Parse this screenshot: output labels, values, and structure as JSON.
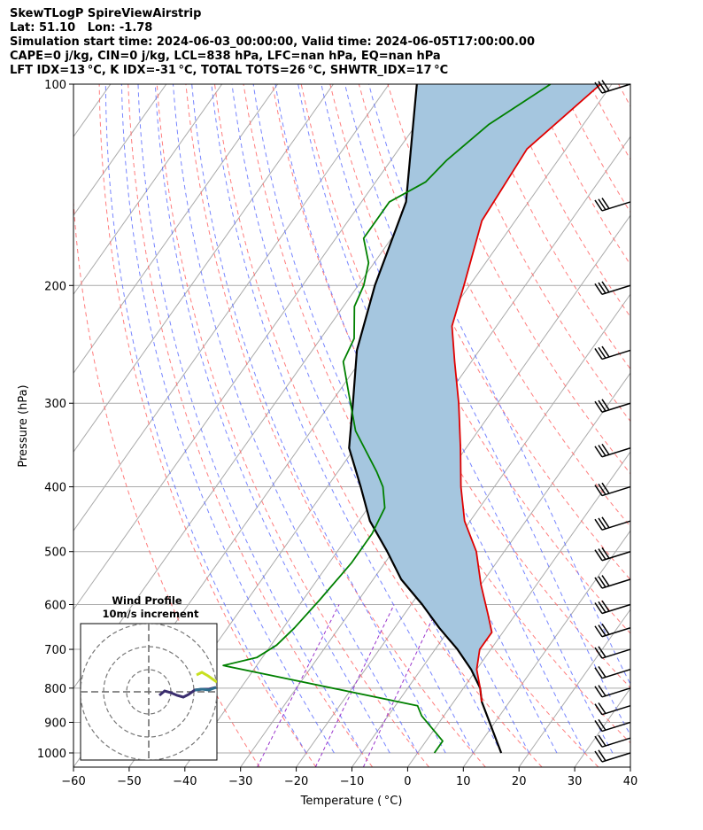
{
  "header": {
    "line1": "SkewTLogP SpireViewAirstrip",
    "line2": "Lat: 51.10   Lon: -1.78",
    "line3": "Simulation start time: 2024-06-03_00:00:00, Valid time: 2024-06-05T17:00:00.00",
    "line4": "CAPE=0 j/kg, CIN=0 j/kg, LCL=838 hPa, LFC=nan hPa, EQ=nan hPa",
    "line5": "LFT IDX=13 °C, K IDX=-31 °C, TOTAL TOTS=26 °C, SHWTR_IDX=17 °C"
  },
  "chart_data": {
    "type": "skewt",
    "xlabel": "Temperature ( °C)",
    "ylabel": "Pressure (hPa)",
    "xlim": [
      -60,
      40
    ],
    "ylim": [
      1050,
      100
    ],
    "x_ticks": [
      "−60",
      "−50",
      "−40",
      "−30",
      "−20",
      "−10",
      "0",
      "10",
      "20",
      "30",
      "40"
    ],
    "y_ticks": [
      "100",
      "200",
      "300",
      "400",
      "500",
      "600",
      "700",
      "800",
      "900",
      "1000"
    ],
    "y_tick_values": [
      100,
      200,
      300,
      400,
      500,
      600,
      700,
      800,
      900,
      1000
    ],
    "grid": true,
    "colors": {
      "temperature": "#e00000",
      "dewpoint": "#008000",
      "parcel": "#000000",
      "fill": "#a5c6df",
      "isotherm": "#aaaaaa",
      "dry_adiabat": "#ff6666",
      "moist_adiabat": "#5566ff",
      "mixing_ratio": "#9933cc"
    },
    "temperature": {
      "pressure": [
        100,
        125,
        160,
        200,
        230,
        260,
        300,
        350,
        400,
        450,
        500,
        560,
        620,
        660,
        700,
        750,
        800,
        838
      ],
      "values": [
        -52,
        -57,
        -56,
        -51,
        -48,
        -43,
        -37,
        -31,
        -26,
        -21,
        -15,
        -10,
        -5,
        -2,
        -2,
        0,
        3,
        5
      ]
    },
    "dewpoint": {
      "pressure": [
        100,
        115,
        130,
        140,
        150,
        170,
        185,
        200,
        215,
        240,
        260,
        290,
        330,
        380,
        400,
        430,
        470,
        520,
        590,
        650,
        690,
        720,
        740,
        850,
        880,
        960,
        1000
      ],
      "values": [
        -61,
        -67,
        -70,
        -71,
        -75,
        -75,
        -71,
        -69,
        -68,
        -64,
        -63,
        -58,
        -52,
        -43,
        -40,
        -37,
        -36,
        -36,
        -37,
        -38,
        -39,
        -41,
        -46,
        -6,
        -4,
        3,
        3
      ]
    },
    "parcel": {
      "pressure": [
        100,
        150,
        200,
        250,
        300,
        350,
        400,
        450,
        500,
        550,
        600,
        650,
        700,
        750,
        800,
        838,
        1000
      ],
      "values": [
        -85,
        -72,
        -67,
        -62,
        -56,
        -51,
        -44,
        -38,
        -31,
        -25,
        -18,
        -12,
        -6,
        -1,
        3,
        5,
        15
      ]
    },
    "wind_barbs_pressure": [
      100,
      150,
      200,
      250,
      300,
      350,
      400,
      450,
      500,
      550,
      600,
      650,
      700,
      750,
      800,
      850,
      900,
      950,
      1000
    ],
    "hodograph": {
      "title": "Wind Profile",
      "subtitle": "10m/s increment"
    }
  }
}
